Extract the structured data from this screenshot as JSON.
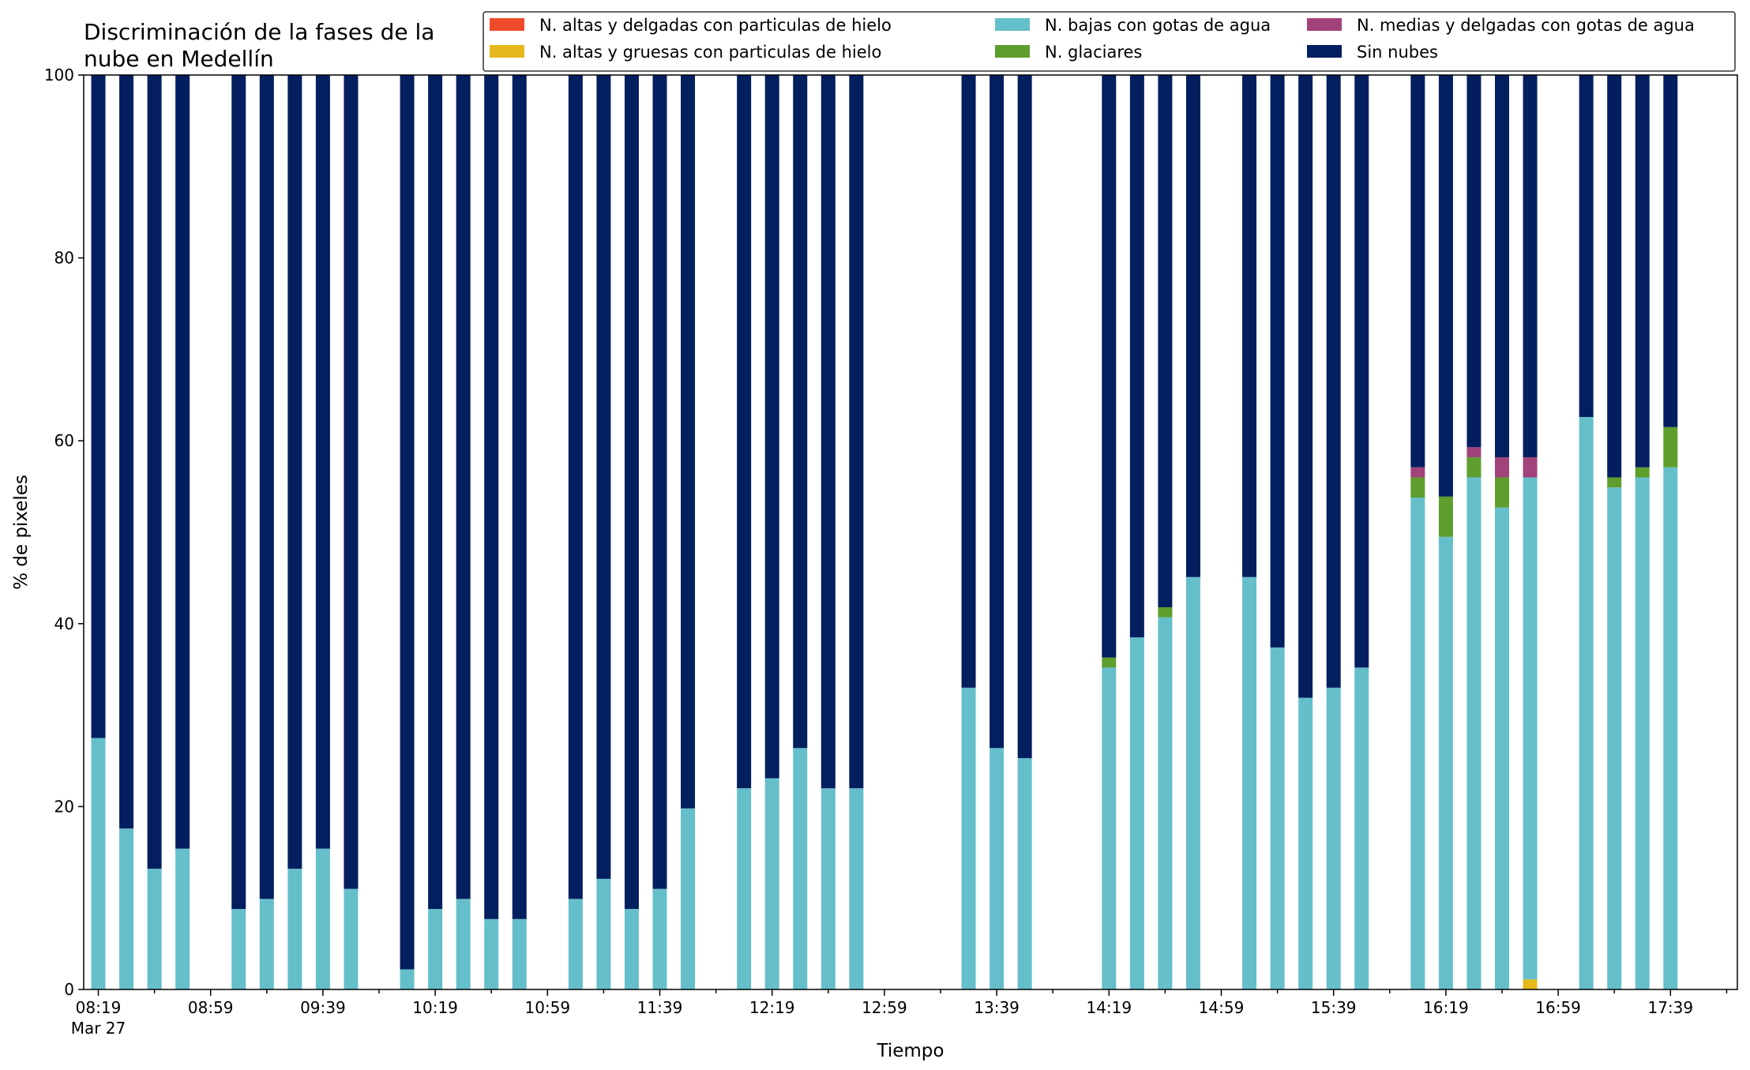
{
  "chart_data": {
    "type": "bar",
    "stacked": true,
    "title_lines": [
      "Discriminación de la fases de la",
      "nube en Medellín"
    ],
    "xlabel": "Tiempo",
    "ylabel": "% de pixeles",
    "ylim": [
      0,
      100
    ],
    "yticks": [
      0,
      20,
      40,
      60,
      80,
      100
    ],
    "x_start": "08:19",
    "x_interval_minutes": 10,
    "x_slots": 58,
    "xtick_labels": [
      "08:19",
      "08:59",
      "09:39",
      "10:19",
      "10:59",
      "11:39",
      "12:19",
      "12:59",
      "13:39",
      "14:19",
      "14:59",
      "15:39",
      "16:19",
      "16:59",
      "17:39"
    ],
    "xtick_date": "Mar 27",
    "grid": false,
    "legend_position": "top-right",
    "series_order": [
      "N. altas y gruesas con particulas de hielo",
      "N. altas y delgadas con particulas de hielo",
      "N. bajas con gotas de agua",
      "N. glaciares",
      "N. medias y delgadas con gotas de agua",
      "Sin nubes"
    ],
    "legend": [
      {
        "name": "N. altas y delgadas con particulas de hielo",
        "color": "#EE4A2C"
      },
      {
        "name": "N. altas y gruesas con particulas de hielo",
        "color": "#E6B81C"
      },
      {
        "name": "N. bajas con gotas de agua",
        "color": "#65BFCB"
      },
      {
        "name": "N. glaciares",
        "color": "#5E9E2D"
      },
      {
        "name": "N. medias y delgadas con gotas de agua",
        "color": "#A1427A"
      },
      {
        "name": "Sin nubes",
        "color": "#031F5F"
      }
    ],
    "bars": [
      {
        "time": "08:19",
        "values": {
          "N. bajas con gotas de agua": 27.5,
          "Sin nubes": 72.5
        }
      },
      {
        "time": "08:29",
        "values": {
          "N. bajas con gotas de agua": 17.6,
          "Sin nubes": 82.4
        }
      },
      {
        "time": "08:39",
        "values": {
          "N. bajas con gotas de agua": 13.2,
          "Sin nubes": 86.8
        }
      },
      {
        "time": "08:49",
        "values": {
          "N. bajas con gotas de agua": 15.4,
          "Sin nubes": 84.6
        }
      },
      {
        "time": "09:09",
        "values": {
          "N. bajas con gotas de agua": 8.8,
          "Sin nubes": 91.2
        }
      },
      {
        "time": "09:19",
        "values": {
          "N. bajas con gotas de agua": 9.9,
          "Sin nubes": 90.1
        }
      },
      {
        "time": "09:29",
        "values": {
          "N. bajas con gotas de agua": 13.2,
          "Sin nubes": 86.8
        }
      },
      {
        "time": "09:39",
        "values": {
          "N. bajas con gotas de agua": 15.4,
          "Sin nubes": 84.6
        }
      },
      {
        "time": "09:49",
        "values": {
          "N. bajas con gotas de agua": 11.0,
          "Sin nubes": 89.0
        }
      },
      {
        "time": "10:09",
        "values": {
          "N. bajas con gotas de agua": 2.2,
          "Sin nubes": 97.8
        }
      },
      {
        "time": "10:19",
        "values": {
          "N. bajas con gotas de agua": 8.8,
          "Sin nubes": 91.2
        }
      },
      {
        "time": "10:29",
        "values": {
          "N. bajas con gotas de agua": 9.9,
          "Sin nubes": 90.1
        }
      },
      {
        "time": "10:39",
        "values": {
          "N. bajas con gotas de agua": 7.7,
          "Sin nubes": 92.3
        }
      },
      {
        "time": "10:49",
        "values": {
          "N. bajas con gotas de agua": 7.7,
          "Sin nubes": 92.3
        }
      },
      {
        "time": "11:09",
        "values": {
          "N. bajas con gotas de agua": 9.9,
          "Sin nubes": 90.1
        }
      },
      {
        "time": "11:19",
        "values": {
          "N. bajas con gotas de agua": 12.1,
          "Sin nubes": 87.9
        }
      },
      {
        "time": "11:29",
        "values": {
          "N. bajas con gotas de agua": 8.8,
          "Sin nubes": 91.2
        }
      },
      {
        "time": "11:39",
        "values": {
          "N. bajas con gotas de agua": 11.0,
          "Sin nubes": 89.0
        }
      },
      {
        "time": "11:49",
        "values": {
          "N. bajas con gotas de agua": 19.8,
          "Sin nubes": 80.2
        }
      },
      {
        "time": "12:09",
        "values": {
          "N. bajas con gotas de agua": 22.0,
          "Sin nubes": 78.0
        }
      },
      {
        "time": "12:19",
        "values": {
          "N. bajas con gotas de agua": 23.1,
          "Sin nubes": 76.9
        }
      },
      {
        "time": "12:29",
        "values": {
          "N. bajas con gotas de agua": 26.4,
          "Sin nubes": 73.6
        }
      },
      {
        "time": "12:39",
        "values": {
          "N. bajas con gotas de agua": 22.0,
          "Sin nubes": 78.0
        }
      },
      {
        "time": "12:49",
        "values": {
          "N. bajas con gotas de agua": 22.0,
          "Sin nubes": 78.0
        }
      },
      {
        "time": "13:29",
        "values": {
          "N. bajas con gotas de agua": 33.0,
          "Sin nubes": 67.0
        }
      },
      {
        "time": "13:39",
        "values": {
          "N. bajas con gotas de agua": 26.4,
          "Sin nubes": 73.6
        }
      },
      {
        "time": "13:49",
        "values": {
          "N. bajas con gotas de agua": 25.3,
          "Sin nubes": 74.7
        }
      },
      {
        "time": "14:19",
        "values": {
          "N. bajas con gotas de agua": 35.2,
          "N. glaciares": 1.1,
          "Sin nubes": 63.7
        }
      },
      {
        "time": "14:29",
        "values": {
          "N. bajas con gotas de agua": 38.5,
          "Sin nubes": 61.5
        }
      },
      {
        "time": "14:39",
        "values": {
          "N. bajas con gotas de agua": 40.7,
          "N. glaciares": 1.1,
          "Sin nubes": 58.2
        }
      },
      {
        "time": "14:49",
        "values": {
          "N. bajas con gotas de agua": 45.1,
          "Sin nubes": 54.9
        }
      },
      {
        "time": "15:09",
        "values": {
          "N. bajas con gotas de agua": 45.1,
          "Sin nubes": 54.9
        }
      },
      {
        "time": "15:19",
        "values": {
          "N. bajas con gotas de agua": 37.4,
          "Sin nubes": 62.6
        }
      },
      {
        "time": "15:29",
        "values": {
          "N. bajas con gotas de agua": 31.9,
          "Sin nubes": 68.1
        }
      },
      {
        "time": "15:39",
        "values": {
          "N. bajas con gotas de agua": 33.0,
          "Sin nubes": 67.0
        }
      },
      {
        "time": "15:49",
        "values": {
          "N. bajas con gotas de agua": 35.2,
          "Sin nubes": 64.8
        }
      },
      {
        "time": "16:09",
        "values": {
          "N. bajas con gotas de agua": 53.8,
          "N. glaciares": 2.2,
          "N. medias y delgadas con gotas de agua": 1.1,
          "Sin nubes": 42.9
        }
      },
      {
        "time": "16:19",
        "values": {
          "N. bajas con gotas de agua": 49.5,
          "N. glaciares": 4.4,
          "Sin nubes": 46.1
        }
      },
      {
        "time": "16:29",
        "values": {
          "N. bajas con gotas de agua": 56.0,
          "N. glaciares": 2.2,
          "N. medias y delgadas con gotas de agua": 1.1,
          "Sin nubes": 40.7
        }
      },
      {
        "time": "16:39",
        "values": {
          "N. bajas con gotas de agua": 52.7,
          "N. glaciares": 3.3,
          "N. medias y delgadas con gotas de agua": 2.2,
          "Sin nubes": 41.8
        }
      },
      {
        "time": "16:49",
        "values": {
          "N. altas y gruesas con particulas de hielo": 1.1,
          "N. bajas con gotas de agua": 54.9,
          "N. medias y delgadas con gotas de agua": 2.2,
          "Sin nubes": 41.8
        }
      },
      {
        "time": "17:09",
        "values": {
          "N. bajas con gotas de agua": 62.6,
          "Sin nubes": 37.4
        }
      },
      {
        "time": "17:19",
        "values": {
          "N. bajas con gotas de agua": 54.9,
          "N. glaciares": 1.1,
          "Sin nubes": 44.0
        }
      },
      {
        "time": "17:29",
        "values": {
          "N. bajas con gotas de agua": 56.0,
          "N. glaciares": 1.1,
          "Sin nubes": 42.9
        }
      },
      {
        "time": "17:39",
        "values": {
          "N. bajas con gotas de agua": 57.1,
          "N. glaciares": 4.4,
          "Sin nubes": 38.5
        }
      }
    ]
  }
}
